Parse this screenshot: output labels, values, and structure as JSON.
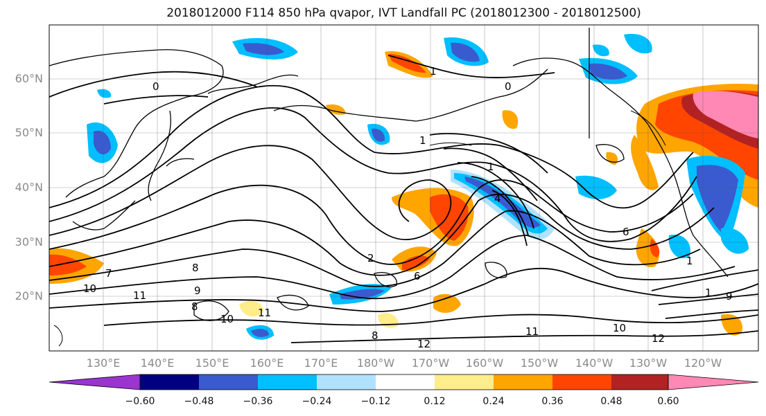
{
  "title": "2018012000 F114 850 hPa qvapor, IVT Landfall PC (2018012300 - 2018012500)",
  "lat_labels": [
    "60°N",
    "50°N",
    "40°N",
    "30°N",
    "20°N"
  ],
  "lon_labels": [
    "130°E",
    "140°E",
    "150°E",
    "160°E",
    "170°E",
    "180°W",
    "170°W",
    "160°W",
    "150°W",
    "140°W",
    "130°W",
    "120°W"
  ],
  "contour_labels": [
    "0",
    "1",
    "1",
    "1",
    "2",
    "4",
    "6",
    "6",
    "7",
    "8",
    "8",
    "8",
    "9",
    "9",
    "10",
    "10",
    "10",
    "11",
    "11",
    "11",
    "12",
    "12",
    "1",
    "0",
    "1"
  ],
  "colorbar": {
    "ticks": [
      "−0.60",
      "−0.48",
      "−0.36",
      "−0.24",
      "−0.12",
      "0.12",
      "0.24",
      "0.36",
      "0.48",
      "0.60"
    ],
    "colors": [
      "#9a35cf",
      "#000080",
      "#3a5bcf",
      "#00bfff",
      "#b0e2ff",
      "#ffffff",
      "#ffec8b",
      "#ffa500",
      "#ff4500",
      "#b22222",
      "#ff88b4"
    ]
  }
}
